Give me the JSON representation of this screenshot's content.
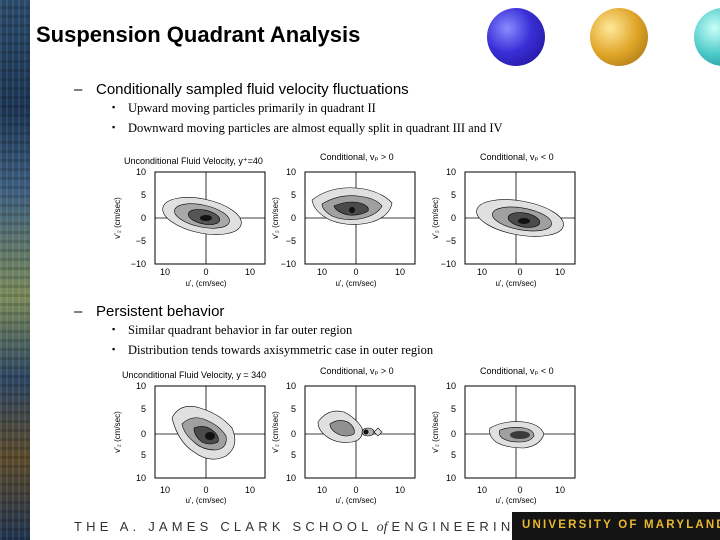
{
  "title": "Suspension Quadrant Analysis",
  "section1": {
    "heading": "Conditionally sampled fluid velocity fluctuations",
    "bullets": [
      "Upward moving particles primarily in quadrant II",
      "Downward moving particles are almost equally split in quadrant III and IV"
    ]
  },
  "section2": {
    "heading": "Persistent behavior",
    "bullets": [
      "Similar quadrant behavior in far outer region",
      "Distribution tends towards axisymmetric case in outer region"
    ]
  },
  "figure1": {
    "panels": [
      {
        "title": "Unconditional Fluid Velocity, y⁺=40",
        "ylabel": "v'₂ (cm/sec)",
        "xlabel": "u', (cm/sec)"
      },
      {
        "title": "Conditional, vₚ > 0",
        "ylabel": "v'₂ (cm/sec)",
        "xlabel": "u', (cm/sec)"
      },
      {
        "title": "Conditional, vₚ < 0",
        "ylabel": "v'₂ (cm/sec)",
        "xlabel": "u', (cm/sec)"
      }
    ],
    "y_ticks": [
      "10",
      "5",
      "0",
      "−5",
      "−10"
    ],
    "x_ticks": [
      "10",
      "0",
      "10"
    ]
  },
  "figure2": {
    "panels": [
      {
        "title": "Unconditional Fluid Velocity, y = 340",
        "ylabel": "v'₂ (cm/sec)",
        "xlabel": "u', (cm/sec)"
      },
      {
        "title": "Conditional, vₚ > 0",
        "ylabel": "v'₂ (cm/sec)",
        "xlabel": "u', (cm/sec)"
      },
      {
        "title": "Conditional, vₚ < 0",
        "ylabel": "v'₂ (cm/sec)",
        "xlabel": "u', (cm/sec)"
      }
    ],
    "y_ticks": [
      "10",
      "5",
      "0",
      "5",
      "10"
    ],
    "x_ticks": [
      "10",
      "0",
      "10"
    ]
  },
  "footer": {
    "left_prefix": "THE A. JAMES CLARK SCHOOL",
    "left_of": "of",
    "left_suffix": "ENGINEERING",
    "right": "UNIVERSITY OF MARYLAND"
  },
  "colors": {
    "contour_dark": "#1a1a1a",
    "contour_mid": "#6a6a6a",
    "contour_light": "#bdbdbd",
    "footer_gold": "#e8b830"
  }
}
